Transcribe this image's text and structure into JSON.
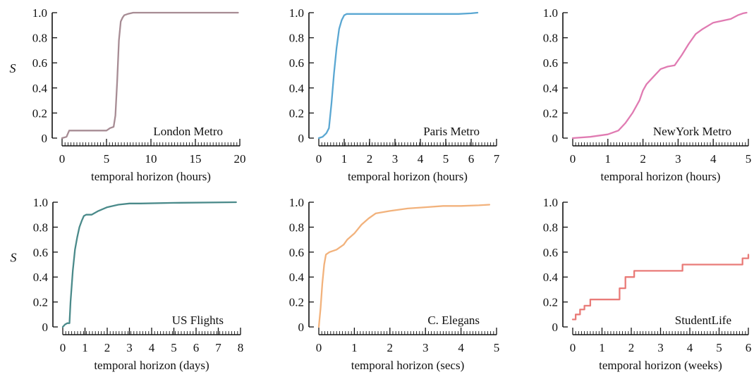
{
  "chart_data": [
    {
      "type": "line",
      "panel": "London Metro",
      "ylabel": "S",
      "xlabel": "temporal horizon (hours)",
      "xlim": [
        0,
        20
      ],
      "ylim": [
        0,
        1
      ],
      "x_ticks": [
        "0",
        "5",
        "10",
        "15",
        "20"
      ],
      "y_ticks": [
        "0",
        "0.2",
        "0.4",
        "0.6",
        "0.8",
        "1.0"
      ],
      "color": "#a78c94",
      "series": [
        {
          "x": [
            0,
            0.5,
            0.8,
            1.0,
            5.0,
            5.4,
            5.8,
            6.0,
            6.2,
            6.4,
            6.6,
            6.8,
            7.0,
            7.4,
            8.0,
            9.0,
            12,
            15,
            19.8
          ],
          "y": [
            0,
            0.01,
            0.06,
            0.06,
            0.06,
            0.08,
            0.09,
            0.18,
            0.45,
            0.78,
            0.93,
            0.96,
            0.98,
            0.99,
            1.0,
            1.0,
            1.0,
            1.0,
            1.0
          ]
        }
      ]
    },
    {
      "type": "line",
      "panel": "Paris Metro",
      "ylabel": "",
      "xlabel": "temporal horizon (hours)",
      "xlim": [
        0,
        7
      ],
      "ylim": [
        0,
        1
      ],
      "x_ticks": [
        "0",
        "1",
        "2",
        "3",
        "4",
        "5",
        "6",
        "7"
      ],
      "y_ticks": [
        "0",
        "0.2",
        "0.4",
        "0.6",
        "0.8",
        "1.0"
      ],
      "color": "#5aa7d2",
      "series": [
        {
          "x": [
            0,
            0.15,
            0.3,
            0.4,
            0.5,
            0.6,
            0.7,
            0.8,
            0.9,
            1.0,
            1.1,
            1.3,
            2,
            3,
            4,
            5,
            5.5,
            6.0,
            6.25
          ],
          "y": [
            0,
            0.01,
            0.04,
            0.08,
            0.28,
            0.52,
            0.72,
            0.87,
            0.94,
            0.98,
            0.99,
            0.99,
            0.99,
            0.99,
            0.99,
            0.99,
            0.99,
            0.995,
            1.0
          ]
        }
      ]
    },
    {
      "type": "line",
      "panel": "NewYork Metro",
      "ylabel": "",
      "xlabel": "temporal horizon (hours)",
      "xlim": [
        0,
        5
      ],
      "ylim": [
        0,
        1
      ],
      "x_ticks": [
        "0",
        "1",
        "2",
        "3",
        "4",
        "5"
      ],
      "y_ticks": [
        "0",
        "0.2",
        "0.4",
        "0.6",
        "0.8",
        "1.0"
      ],
      "color": "#e07bb2",
      "series": [
        {
          "x": [
            0,
            0.5,
            1.0,
            1.3,
            1.5,
            1.7,
            1.9,
            2.0,
            2.1,
            2.3,
            2.5,
            2.7,
            2.9,
            3.0,
            3.1,
            3.3,
            3.5,
            3.7,
            4.0,
            4.5,
            4.7,
            4.85,
            4.95
          ],
          "y": [
            0,
            0.01,
            0.03,
            0.06,
            0.12,
            0.2,
            0.3,
            0.38,
            0.43,
            0.49,
            0.55,
            0.57,
            0.58,
            0.62,
            0.66,
            0.75,
            0.83,
            0.87,
            0.92,
            0.95,
            0.98,
            0.995,
            1.0
          ]
        }
      ]
    },
    {
      "type": "line",
      "panel": "US Flights",
      "ylabel": "S",
      "xlabel": "temporal horizon (days)",
      "xlim": [
        0,
        8
      ],
      "ylim": [
        0,
        1
      ],
      "x_ticks": [
        "0",
        "1",
        "2",
        "3",
        "4",
        "5",
        "6",
        "7",
        "8"
      ],
      "y_ticks": [
        "0",
        "0.2",
        "0.4",
        "0.6",
        "0.8",
        "1.0"
      ],
      "color": "#4a8a8a",
      "series": [
        {
          "x": [
            0,
            0.1,
            0.2,
            0.3,
            0.35,
            0.45,
            0.55,
            0.65,
            0.75,
            0.85,
            0.95,
            1.05,
            1.3,
            1.6,
            2.0,
            2.5,
            3.0,
            3.5,
            5,
            7.8
          ],
          "y": [
            0,
            0.02,
            0.03,
            0.03,
            0.2,
            0.45,
            0.62,
            0.72,
            0.8,
            0.85,
            0.89,
            0.9,
            0.9,
            0.93,
            0.96,
            0.98,
            0.99,
            0.99,
            0.995,
            1.0
          ]
        }
      ]
    },
    {
      "type": "line",
      "panel": "C. Elegans",
      "ylabel": "",
      "xlabel": "temporal horizon (secs)",
      "xlim": [
        0,
        5
      ],
      "ylim": [
        0,
        1
      ],
      "x_ticks": [
        "0",
        "1",
        "2",
        "3",
        "4",
        "5"
      ],
      "y_ticks": [
        "0",
        "0.2",
        "0.4",
        "0.6",
        "0.8",
        "1.0"
      ],
      "color": "#f2b27c",
      "series": [
        {
          "x": [
            0,
            0.05,
            0.1,
            0.15,
            0.2,
            0.3,
            0.5,
            0.7,
            0.8,
            1.0,
            1.2,
            1.4,
            1.6,
            2.0,
            2.5,
            3.0,
            3.5,
            4.0,
            4.5,
            4.8
          ],
          "y": [
            0,
            0.15,
            0.35,
            0.5,
            0.58,
            0.6,
            0.62,
            0.66,
            0.7,
            0.75,
            0.82,
            0.87,
            0.91,
            0.93,
            0.95,
            0.96,
            0.97,
            0.97,
            0.975,
            0.98
          ]
        }
      ]
    },
    {
      "type": "line",
      "panel": "StudentLife",
      "ylabel": "",
      "xlabel": "temporal horizon (weeks)",
      "xlim": [
        0,
        6
      ],
      "ylim": [
        0,
        1
      ],
      "x_ticks": [
        "0",
        "1",
        "2",
        "3",
        "4",
        "5",
        "6"
      ],
      "y_ticks": [
        "0",
        "0.2",
        "0.4",
        "0.6",
        "0.8",
        "1.0"
      ],
      "color": "#e97b78",
      "series": [
        {
          "step": true,
          "x": [
            0,
            0.1,
            0.25,
            0.4,
            0.6,
            0.9,
            1.3,
            1.6,
            1.8,
            2.1,
            2.6,
            3.75,
            4.5,
            5.5,
            5.8,
            6.0
          ],
          "y": [
            0.06,
            0.1,
            0.14,
            0.17,
            0.22,
            0.22,
            0.22,
            0.31,
            0.4,
            0.45,
            0.45,
            0.5,
            0.5,
            0.5,
            0.55,
            0.58
          ]
        }
      ]
    }
  ]
}
